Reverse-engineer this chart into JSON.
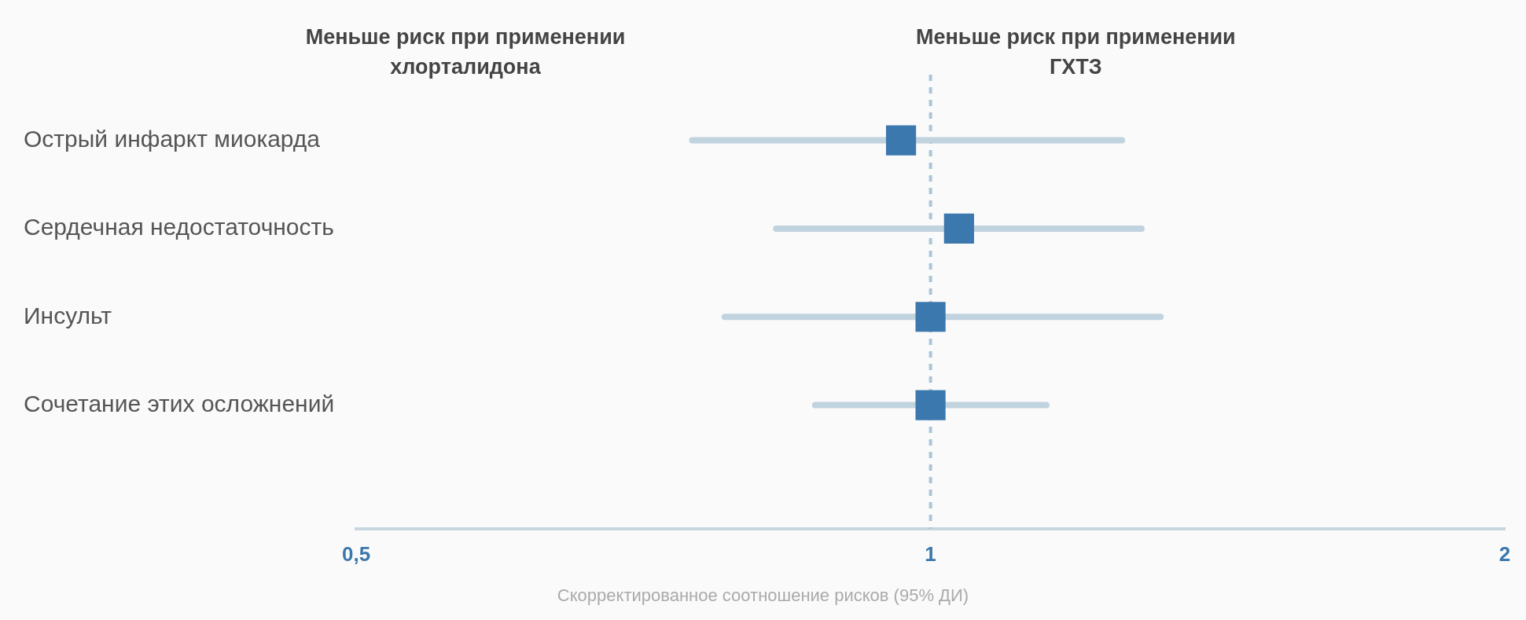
{
  "chart_data": {
    "type": "scatter",
    "orientation": "horizontal",
    "log": "x",
    "grid": false,
    "legend": false,
    "marker": "square",
    "categories": [
      "Острый инфаркт миокарда",
      "Сердечная недостаточность",
      "Инсульт",
      "Сочетание этих осложнений"
    ],
    "values": [
      0.965,
      1.035,
      1.0,
      1.0
    ],
    "errors": [
      [
        0.75,
        1.26
      ],
      [
        0.83,
        1.29
      ],
      [
        0.78,
        1.32
      ],
      [
        0.87,
        1.15
      ]
    ],
    "color": "#3b78ad",
    "xlim": [
      0.5,
      2
    ],
    "xticks": [
      {
        "value": 0.5,
        "label": "0,5"
      },
      1,
      2
    ],
    "xlabel": "Скорректированное соотношение рисков (95% ДИ)",
    "ref_lines": [
      {
        "axis": "x",
        "value": 1,
        "color": "#a9c6d6",
        "line_style": "dashed"
      }
    ],
    "annotations": [
      "Меньше риск при применении\nхлорталидона",
      "Меньше риск при применении\nГХТЗ"
    ]
  }
}
